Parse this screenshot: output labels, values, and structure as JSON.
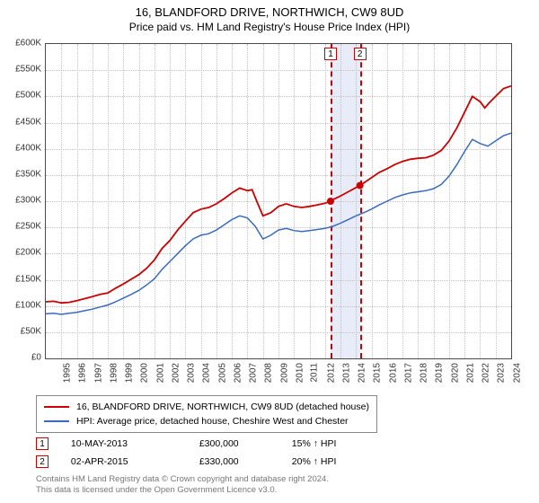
{
  "title": "16, BLANDFORD DRIVE, NORTHWICH, CW9 8UD",
  "subtitle": "Price paid vs. HM Land Registry's House Price Index (HPI)",
  "chart": {
    "type": "line",
    "background_color": "#ffffff",
    "grid_color": "#c0c0c0",
    "border_color": "#4a4a4a",
    "title_fontsize": 13,
    "label_fontsize": 10,
    "y": {
      "min": 0,
      "max": 600000,
      "step": 50000,
      "labels": [
        "£0",
        "£50K",
        "£100K",
        "£150K",
        "£200K",
        "£250K",
        "£300K",
        "£350K",
        "£400K",
        "£450K",
        "£500K",
        "£550K",
        "£600K"
      ]
    },
    "x": {
      "min": 1995,
      "max": 2025,
      "step": 1,
      "labels": [
        "1995",
        "1996",
        "1997",
        "1998",
        "1999",
        "2000",
        "2001",
        "2002",
        "2003",
        "2004",
        "2005",
        "2006",
        "2007",
        "2008",
        "2009",
        "2010",
        "2011",
        "2012",
        "2013",
        "2014",
        "2015",
        "2016",
        "2017",
        "2018",
        "2019",
        "2020",
        "2021",
        "2022",
        "2023",
        "2024"
      ]
    },
    "series": [
      {
        "name": "property",
        "label": "16, BLANDFORD DRIVE, NORTHWICH, CW9 8UD (detached house)",
        "color": "#cc0000",
        "line_width": 1.8,
        "data": [
          [
            1995.0,
            108000
          ],
          [
            1995.5,
            109000
          ],
          [
            1996.0,
            106000
          ],
          [
            1996.5,
            107000
          ],
          [
            1997.0,
            110000
          ],
          [
            1997.5,
            114000
          ],
          [
            1998.0,
            118000
          ],
          [
            1998.5,
            122000
          ],
          [
            1999.0,
            125000
          ],
          [
            1999.5,
            134000
          ],
          [
            2000.0,
            142000
          ],
          [
            2000.5,
            151000
          ],
          [
            2001.0,
            160000
          ],
          [
            2001.5,
            172000
          ],
          [
            2002.0,
            188000
          ],
          [
            2002.5,
            210000
          ],
          [
            2003.0,
            225000
          ],
          [
            2003.5,
            245000
          ],
          [
            2004.0,
            262000
          ],
          [
            2004.5,
            278000
          ],
          [
            2005.0,
            285000
          ],
          [
            2005.5,
            288000
          ],
          [
            2006.0,
            295000
          ],
          [
            2006.5,
            305000
          ],
          [
            2007.0,
            316000
          ],
          [
            2007.5,
            325000
          ],
          [
            2008.0,
            320000
          ],
          [
            2008.3,
            322000
          ],
          [
            2008.6,
            300000
          ],
          [
            2009.0,
            272000
          ],
          [
            2009.5,
            278000
          ],
          [
            2010.0,
            290000
          ],
          [
            2010.5,
            295000
          ],
          [
            2011.0,
            290000
          ],
          [
            2011.5,
            288000
          ],
          [
            2012.0,
            290000
          ],
          [
            2012.5,
            293000
          ],
          [
            2013.0,
            296000
          ],
          [
            2013.36,
            300000
          ],
          [
            2013.5,
            303000
          ],
          [
            2014.0,
            310000
          ],
          [
            2014.5,
            318000
          ],
          [
            2015.0,
            326000
          ],
          [
            2015.25,
            330000
          ],
          [
            2015.5,
            335000
          ],
          [
            2016.0,
            345000
          ],
          [
            2016.5,
            355000
          ],
          [
            2017.0,
            362000
          ],
          [
            2017.5,
            370000
          ],
          [
            2018.0,
            376000
          ],
          [
            2018.5,
            380000
          ],
          [
            2019.0,
            382000
          ],
          [
            2019.5,
            383000
          ],
          [
            2020.0,
            388000
          ],
          [
            2020.5,
            397000
          ],
          [
            2021.0,
            415000
          ],
          [
            2021.5,
            440000
          ],
          [
            2022.0,
            470000
          ],
          [
            2022.5,
            500000
          ],
          [
            2023.0,
            490000
          ],
          [
            2023.3,
            478000
          ],
          [
            2023.6,
            488000
          ],
          [
            2024.0,
            500000
          ],
          [
            2024.5,
            515000
          ],
          [
            2025.0,
            520000
          ]
        ]
      },
      {
        "name": "hpi",
        "label": "HPI: Average price, detached house, Cheshire West and Chester",
        "color": "#3b6bbf",
        "line_width": 1.5,
        "data": [
          [
            1995.0,
            85000
          ],
          [
            1995.5,
            86000
          ],
          [
            1996.0,
            84000
          ],
          [
            1996.5,
            86000
          ],
          [
            1997.0,
            88000
          ],
          [
            1997.5,
            91000
          ],
          [
            1998.0,
            94000
          ],
          [
            1998.5,
            98000
          ],
          [
            1999.0,
            102000
          ],
          [
            1999.5,
            108000
          ],
          [
            2000.0,
            115000
          ],
          [
            2000.5,
            122000
          ],
          [
            2001.0,
            130000
          ],
          [
            2001.5,
            140000
          ],
          [
            2002.0,
            152000
          ],
          [
            2002.5,
            170000
          ],
          [
            2003.0,
            185000
          ],
          [
            2003.5,
            200000
          ],
          [
            2004.0,
            215000
          ],
          [
            2004.5,
            228000
          ],
          [
            2005.0,
            235000
          ],
          [
            2005.5,
            238000
          ],
          [
            2006.0,
            245000
          ],
          [
            2006.5,
            255000
          ],
          [
            2007.0,
            265000
          ],
          [
            2007.5,
            272000
          ],
          [
            2008.0,
            268000
          ],
          [
            2008.5,
            252000
          ],
          [
            2009.0,
            228000
          ],
          [
            2009.5,
            235000
          ],
          [
            2010.0,
            245000
          ],
          [
            2010.5,
            248000
          ],
          [
            2011.0,
            244000
          ],
          [
            2011.5,
            242000
          ],
          [
            2012.0,
            244000
          ],
          [
            2012.5,
            246000
          ],
          [
            2013.0,
            248000
          ],
          [
            2013.5,
            252000
          ],
          [
            2014.0,
            258000
          ],
          [
            2014.5,
            265000
          ],
          [
            2015.0,
            272000
          ],
          [
            2015.5,
            278000
          ],
          [
            2016.0,
            285000
          ],
          [
            2016.5,
            293000
          ],
          [
            2017.0,
            300000
          ],
          [
            2017.5,
            307000
          ],
          [
            2018.0,
            312000
          ],
          [
            2018.5,
            316000
          ],
          [
            2019.0,
            318000
          ],
          [
            2019.5,
            320000
          ],
          [
            2020.0,
            324000
          ],
          [
            2020.5,
            332000
          ],
          [
            2021.0,
            348000
          ],
          [
            2021.5,
            370000
          ],
          [
            2022.0,
            395000
          ],
          [
            2022.5,
            418000
          ],
          [
            2023.0,
            410000
          ],
          [
            2023.5,
            405000
          ],
          [
            2024.0,
            415000
          ],
          [
            2024.5,
            425000
          ],
          [
            2025.0,
            430000
          ]
        ]
      }
    ],
    "sale_markers": [
      {
        "index": "1",
        "year": 2013.36,
        "value": 300000
      },
      {
        "index": "2",
        "year": 2015.25,
        "value": 330000
      }
    ],
    "sale_band": {
      "from_year": 2013.36,
      "to_year": 2015.25,
      "color": "#e8ecf9"
    }
  },
  "legend": {
    "items": [
      {
        "color": "#cc0000",
        "label_key": "chart.series.0.label"
      },
      {
        "color": "#3b6bbf",
        "label_key": "chart.series.1.label"
      }
    ]
  },
  "sales_table": {
    "rows": [
      {
        "index": "1",
        "date": "10-MAY-2013",
        "price": "£300,000",
        "hpi_diff": "15% ↑ HPI"
      },
      {
        "index": "2",
        "date": "02-APR-2015",
        "price": "£330,000",
        "hpi_diff": "20% ↑ HPI"
      }
    ]
  },
  "footnote_line1": "Contains HM Land Registry data © Crown copyright and database right 2024.",
  "footnote_line2": "This data is licensed under the Open Government Licence v3.0."
}
